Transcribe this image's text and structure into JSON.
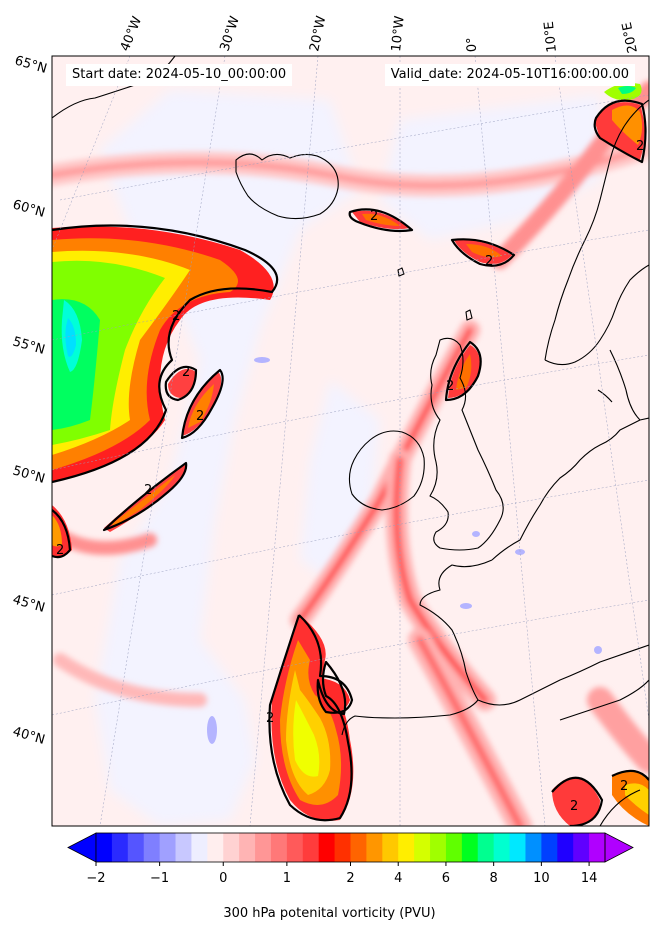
{
  "start_date": "Start date: 2024-05-10_00:00:00",
  "valid_date": "Valid_date: 2024-05-10T16:00:00.00",
  "lon_labels": [
    "40°W",
    "30°W",
    "20°W",
    "10°W",
    "0°",
    "10°E",
    "20°E"
  ],
  "lat_labels": [
    "65°N",
    "60°N",
    "55°N",
    "50°N",
    "45°N",
    "40°N"
  ],
  "contour_level_label": "2",
  "colorbar": {
    "title": "300 hPa potenital vorticity (PVU)",
    "ticks": [
      "−2",
      "−1",
      "0",
      "1",
      "2",
      "4",
      "6",
      "8",
      "10",
      "14"
    ],
    "colors": [
      "#0000ff",
      "#2a2aff",
      "#5555ff",
      "#7f7fff",
      "#a0a0ff",
      "#c8c8ff",
      "#eeeeff",
      "#ffeeee",
      "#ffd2d2",
      "#ffb4b4",
      "#ff9696",
      "#ff7878",
      "#ff5a5a",
      "#ff3c3c",
      "#ff0000",
      "#ff3000",
      "#ff6400",
      "#ff9600",
      "#ffc800",
      "#ffee00",
      "#d4ff00",
      "#a0ff00",
      "#60ff00",
      "#00ff20",
      "#00ff90",
      "#00ffd0",
      "#00e8ff",
      "#0090ff",
      "#0040ff",
      "#2000ff",
      "#6000ff",
      "#b000ff"
    ]
  }
}
